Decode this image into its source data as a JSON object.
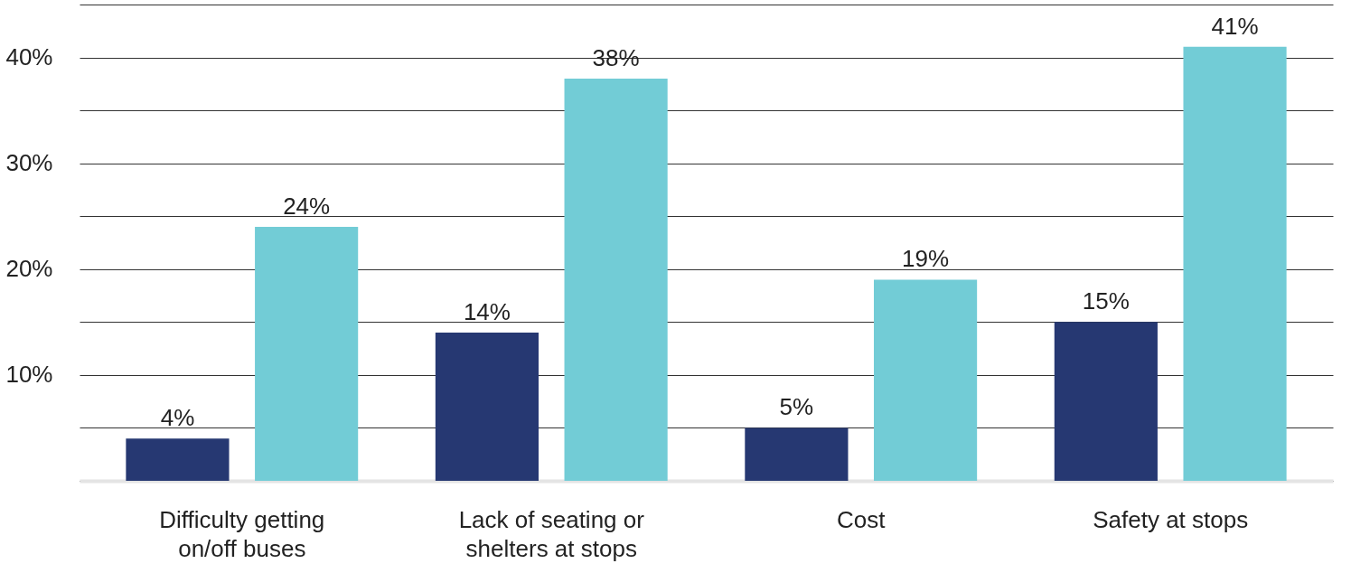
{
  "chart_data": {
    "type": "bar",
    "categories": [
      "Difficulty getting\non/off buses",
      "Lack of seating or\nshelters at stops",
      "Cost",
      "Safety at stops"
    ],
    "series": [
      {
        "color": "#263872",
        "values": [
          4,
          14,
          5,
          15
        ],
        "value_labels": [
          "4%",
          "14%",
          "5%",
          "15%"
        ]
      },
      {
        "color": "#72ccd6",
        "values": [
          24,
          38,
          19,
          41
        ],
        "value_labels": [
          "24%",
          "38%",
          "19%",
          "41%"
        ]
      }
    ],
    "ylim": [
      0,
      45
    ],
    "yticks": [
      {
        "value": 0,
        "label": null
      },
      {
        "value": 5,
        "label": null
      },
      {
        "value": 10,
        "label": "10%"
      },
      {
        "value": 15,
        "label": null
      },
      {
        "value": 20,
        "label": "20%"
      },
      {
        "value": 25,
        "label": null
      },
      {
        "value": 30,
        "label": "30%"
      },
      {
        "value": 35,
        "label": null
      },
      {
        "value": 40,
        "label": "40%"
      },
      {
        "value": 45,
        "label": null
      }
    ],
    "grid": "y",
    "legend": false
  }
}
